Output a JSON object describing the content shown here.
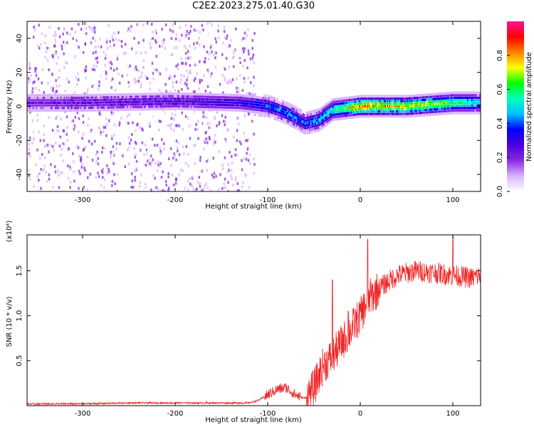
{
  "title": "C2E2.2023.275.01.40.G30",
  "colors": {
    "snr_line": "#ee2222",
    "colormap": [
      "#ffffff",
      "#d9b3ff",
      "#8a2be2",
      "#4b00e0",
      "#0000ff",
      "#00bfff",
      "#00ffc0",
      "#00ff00",
      "#ffff00",
      "#ff8000",
      "#ff0000",
      "#ff1493"
    ]
  },
  "chart_data": [
    {
      "type": "heatmap",
      "title": "C2E2.2023.275.01.40.G30",
      "xlabel": "Height of straight line (km)",
      "ylabel": "Frequency (Hz)",
      "xlim": [
        -360,
        130
      ],
      "ylim": [
        -50,
        50
      ],
      "xticks": [
        -300,
        -200,
        -100,
        0,
        100
      ],
      "yticks": [
        -40,
        -20,
        0,
        20,
        40
      ],
      "colorbar": {
        "label": "Normalized spectral amplitude",
        "range": [
          0,
          1
        ],
        "ticks": [
          "0.0",
          "0.2",
          "0.4",
          "0.6",
          "0.8"
        ]
      },
      "ridge": {
        "heights_km": [
          -360,
          -300,
          -200,
          -130,
          -100,
          -80,
          -60,
          -45,
          -30,
          0,
          50,
          100,
          130
        ],
        "center_freq_hz": [
          2,
          2,
          3,
          2,
          0,
          -4,
          -10,
          -8,
          -2,
          0,
          0,
          2,
          2
        ],
        "peak_amplitude": [
          0.25,
          0.28,
          0.3,
          0.35,
          0.45,
          0.5,
          0.45,
          0.55,
          0.6,
          0.95,
          0.85,
          0.7,
          0.55
        ],
        "background_noise_until_km": -125
      }
    },
    {
      "type": "line",
      "xlabel": "Height of straight line (km)",
      "ylabel": "SNR (10 * v/v)",
      "y_multiplier": "(x10⁴)",
      "xlim": [
        -360,
        130
      ],
      "ylim": [
        0,
        1.9
      ],
      "xticks": [
        -300,
        -200,
        -100,
        0,
        100
      ],
      "yticks": [
        "0.5",
        "1.0",
        "1.5"
      ],
      "series": [
        {
          "x": [
            -360,
            -300,
            -250,
            -200,
            -150,
            -120,
            -110,
            -100,
            -90,
            -80,
            -70,
            -60,
            -50,
            -40,
            -30,
            -20,
            -10,
            0,
            10,
            20,
            30,
            40,
            60,
            80,
            100,
            120,
            130
          ],
          "y": [
            0.02,
            0.02,
            0.03,
            0.03,
            0.03,
            0.03,
            0.06,
            0.12,
            0.18,
            0.2,
            0.12,
            0.08,
            0.2,
            0.45,
            0.55,
            0.7,
            0.85,
            1.0,
            1.2,
            1.3,
            1.38,
            1.45,
            1.5,
            1.48,
            1.45,
            1.42,
            1.45
          ],
          "spikes": [
            {
              "x": -30,
              "y": 1.4
            },
            {
              "x": -13,
              "y": 1.05
            },
            {
              "x": 8,
              "y": 1.85
            },
            {
              "x": 100,
              "y": 1.93
            }
          ]
        }
      ]
    }
  ]
}
